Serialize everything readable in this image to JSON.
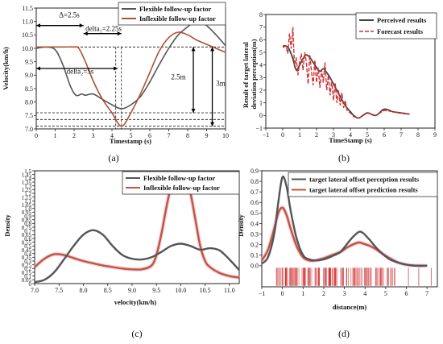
{
  "chart_data": [
    {
      "id": "a",
      "panel_label": "(a)",
      "type": "line",
      "xlabel": "Timestamp (s)",
      "ylabel": "Velocity(km/h)",
      "xlim": [
        0,
        10
      ],
      "ylim": [
        7.0,
        11.5
      ],
      "xticks": [
        "0",
        "1",
        "2",
        "3",
        "4",
        "5",
        "6",
        "7",
        "8",
        "9",
        "10"
      ],
      "yticks": [
        "7.0",
        "7.5",
        "8.0",
        "8.5",
        "9.0",
        "9.5",
        "10.0",
        "10.5",
        "11.0",
        "11.5"
      ],
      "legend_position": "top-right",
      "series": [
        {
          "name": "Flexible follow-up factor",
          "color": "#555555",
          "x": [
            0,
            0.5,
            1,
            1.4,
            1.8,
            2.1,
            2.4,
            2.6,
            3.0,
            3.5,
            4.0,
            4.5,
            5.0,
            5.5,
            6.0,
            6.5,
            7.0,
            7.5,
            8.0,
            8.5,
            9.0,
            9.5,
            10.0
          ],
          "y": [
            10.0,
            10.05,
            9.95,
            9.4,
            8.6,
            8.25,
            8.3,
            8.25,
            8.3,
            8.1,
            7.9,
            7.75,
            7.9,
            8.2,
            8.75,
            9.4,
            10.0,
            10.5,
            10.8,
            11.05,
            10.85,
            10.5,
            10.1
          ]
        },
        {
          "name": "Inflexible follow-up factor",
          "color": "#b05030",
          "x": [
            0,
            0.5,
            1,
            1.5,
            2.0,
            2.25,
            2.6,
            3.0,
            3.5,
            4.0,
            4.5,
            5.0,
            5.5,
            6.0,
            6.5,
            7.0,
            7.5,
            8.0,
            8.5,
            9.0,
            9.5,
            10.0
          ],
          "y": [
            10.05,
            10.05,
            10.05,
            10.05,
            10.05,
            10.0,
            9.5,
            8.8,
            8.1,
            7.6,
            7.1,
            7.6,
            8.3,
            9.1,
            9.9,
            10.4,
            10.6,
            10.5,
            10.3,
            10.15,
            10.0,
            9.85
          ]
        }
      ],
      "annotations": {
        "delta_main": "Δ=2.5s",
        "delta_1": "delta₁=2.25s",
        "delta_2": "delta₂=5s",
        "dim_1": "2.5m",
        "dim_2": "3m"
      }
    },
    {
      "id": "b",
      "panel_label": "(b)",
      "type": "line",
      "xlabel": "TimeStamp (s)",
      "ylabel": "Result of target lateral deviation perception(m)",
      "xlim": [
        -1,
        9
      ],
      "ylim": [
        -1,
        8
      ],
      "xticks": [
        "−1",
        "0",
        "1",
        "2",
        "3",
        "4",
        "5",
        "6",
        "7",
        "8",
        "9"
      ],
      "yticks": [
        "−1",
        "0",
        "1",
        "2",
        "3",
        "4",
        "5",
        "6",
        "7",
        "8"
      ],
      "legend_position": "top-right",
      "series": [
        {
          "name": "Perceived results",
          "color": "#444444",
          "x": [
            0,
            0.2,
            0.4,
            0.6,
            0.8,
            1.0,
            1.2,
            1.4,
            1.6,
            1.8,
            2.0,
            2.2,
            2.4,
            2.6,
            2.8,
            3.0,
            3.2,
            3.4,
            3.6,
            3.8,
            4.0,
            4.2,
            4.5,
            5.0,
            5.5,
            6.0,
            6.5,
            7.0,
            7.5
          ],
          "y": [
            5.5,
            5.5,
            5.2,
            4.5,
            3.6,
            4.0,
            4.5,
            4.8,
            4.6,
            4.2,
            3.8,
            3.5,
            3.7,
            3.4,
            3.0,
            2.5,
            2.0,
            1.5,
            1.0,
            0.6,
            0.3,
            0.0,
            -0.2,
            0.2,
            0.0,
            0.5,
            0.3,
            0.2,
            0.1
          ]
        },
        {
          "name": "Forecast results",
          "color": "#d03030",
          "x": [
            0,
            0.2,
            0.3,
            0.4,
            0.5,
            0.6,
            0.7,
            0.8,
            0.9,
            1.0,
            1.1,
            1.2,
            1.3,
            1.4,
            1.5,
            1.6,
            1.7,
            1.8,
            1.9,
            2.0,
            2.1,
            2.2,
            2.3,
            2.4,
            2.5,
            2.6,
            2.7,
            2.8,
            2.9,
            3.0,
            3.1,
            3.2,
            3.3,
            3.4,
            3.5,
            3.6,
            3.7,
            3.8,
            4.0,
            4.2,
            4.5,
            5.0,
            5.5,
            6.0,
            6.5,
            7.0,
            7.5
          ],
          "y": [
            5.4,
            5.5,
            4.9,
            6.5,
            5.3,
            7.0,
            3.8,
            4.6,
            3.2,
            4.2,
            4.9,
            3.6,
            5.0,
            4.2,
            2.5,
            4.8,
            3.5,
            2.4,
            4.4,
            2.6,
            3.8,
            2.2,
            3.6,
            2.6,
            4.2,
            2.0,
            3.2,
            1.6,
            2.8,
            1.2,
            2.6,
            1.0,
            2.0,
            0.8,
            1.8,
            0.6,
            1.2,
            0.4,
            0.2,
            -0.1,
            -0.2,
            0.2,
            0.0,
            0.4,
            0.3,
            0.2,
            0.1
          ]
        }
      ]
    },
    {
      "id": "c",
      "panel_label": "(c)",
      "type": "line",
      "xlabel": "velocity(km/h)",
      "ylabel": "Density",
      "xlim": [
        7.0,
        11.2
      ],
      "ylim": [
        0,
        1.5
      ],
      "xticks": [
        "7.0",
        "7.5",
        "8.0",
        "8.5",
        "9.0",
        "9.5",
        "10.0",
        "10.5",
        "11.0"
      ],
      "yticks": [
        "0",
        "0.05",
        "0.1",
        "0.15",
        "0.2",
        "0.25",
        "0.3",
        "0.35",
        "0.4",
        "0.45",
        "0.5",
        "0.55",
        "0.6",
        "0.65",
        "0.7",
        "0.75",
        "0.8",
        "0.85",
        "0.9",
        "0.95",
        "1.0",
        "1.05",
        "1.1",
        "1.15",
        "1.2",
        "1.25",
        "1.3",
        "1.35",
        "1.4",
        "1.45",
        "1.5"
      ],
      "legend_position": "top-right",
      "series": [
        {
          "name": "Flexible follow-up factor",
          "color": "#555555",
          "x": [
            7.0,
            7.2,
            7.4,
            7.6,
            7.8,
            8.0,
            8.2,
            8.4,
            8.6,
            8.8,
            9.0,
            9.2,
            9.4,
            9.6,
            9.8,
            10.0,
            10.2,
            10.4,
            10.6,
            10.8,
            11.0,
            11.2
          ],
          "y": [
            0.02,
            0.05,
            0.15,
            0.32,
            0.5,
            0.65,
            0.71,
            0.65,
            0.5,
            0.38,
            0.33,
            0.32,
            0.35,
            0.42,
            0.5,
            0.53,
            0.5,
            0.45,
            0.47,
            0.44,
            0.32,
            0.18
          ]
        },
        {
          "name": "Inflexible follow-up factor",
          "color": "#c0583a",
          "x": [
            7.0,
            7.2,
            7.4,
            7.6,
            7.8,
            8.0,
            8.2,
            8.4,
            8.6,
            8.8,
            9.0,
            9.2,
            9.4,
            9.5,
            9.6,
            9.7,
            9.8,
            9.9,
            10.0,
            10.1,
            10.2,
            10.3,
            10.4,
            10.5,
            10.6,
            10.8,
            11.0,
            11.2
          ],
          "y": [
            0.22,
            0.33,
            0.39,
            0.38,
            0.34,
            0.3,
            0.27,
            0.24,
            0.22,
            0.2,
            0.19,
            0.19,
            0.24,
            0.38,
            0.65,
            1.0,
            1.28,
            1.4,
            1.42,
            1.38,
            1.2,
            0.85,
            0.5,
            0.3,
            0.22,
            0.14,
            0.1,
            0.08
          ]
        }
      ]
    },
    {
      "id": "d",
      "panel_label": "(d)",
      "type": "line",
      "xlabel": "distance(m)",
      "ylabel": "Density",
      "xlim": [
        -1,
        7.5
      ],
      "ylim": [
        -0.2,
        0.9
      ],
      "xticks": [
        "−1",
        "0",
        "1",
        "2",
        "3",
        "4",
        "5",
        "6",
        "7"
      ],
      "yticks": [
        "0.0",
        "0.1",
        "0.2",
        "0.3",
        "0.4",
        "0.5",
        "0.6",
        "0.7",
        "0.8",
        "0.9"
      ],
      "legend_position": "top-right",
      "series": [
        {
          "name": "target lateral offset perception results",
          "color": "#555555",
          "x": [
            -1.0,
            -0.7,
            -0.4,
            -0.2,
            0,
            0.2,
            0.4,
            0.7,
            1.0,
            1.3,
            1.6,
            2.0,
            2.4,
            2.8,
            3.1,
            3.4,
            3.7,
            3.9,
            4.2,
            4.5,
            4.8,
            5.2,
            5.6,
            6.0,
            6.5,
            7.0
          ],
          "y": [
            0.02,
            0.08,
            0.3,
            0.6,
            0.84,
            0.75,
            0.52,
            0.25,
            0.1,
            0.06,
            0.05,
            0.06,
            0.09,
            0.13,
            0.2,
            0.27,
            0.32,
            0.31,
            0.25,
            0.18,
            0.12,
            0.06,
            0.03,
            0.01,
            0.0,
            0.0
          ]
        },
        {
          "name": "target lateral offset prediction results",
          "color": "#c0583a",
          "x": [
            -1.0,
            -0.7,
            -0.4,
            -0.2,
            0,
            0.2,
            0.4,
            0.7,
            1.0,
            1.3,
            1.6,
            2.0,
            2.4,
            2.8,
            3.1,
            3.4,
            3.7,
            3.9,
            4.2,
            4.5,
            4.8,
            5.2,
            5.6,
            6.0,
            6.5,
            7.0
          ],
          "y": [
            0.05,
            0.15,
            0.35,
            0.5,
            0.55,
            0.48,
            0.35,
            0.18,
            0.08,
            0.05,
            0.05,
            0.07,
            0.1,
            0.13,
            0.17,
            0.2,
            0.22,
            0.21,
            0.19,
            0.16,
            0.12,
            0.07,
            0.03,
            0.01,
            0.0,
            0.0
          ]
        }
      ],
      "rug_range": [
        -0.3,
        5.5
      ],
      "rug_color": "#d03030"
    }
  ]
}
